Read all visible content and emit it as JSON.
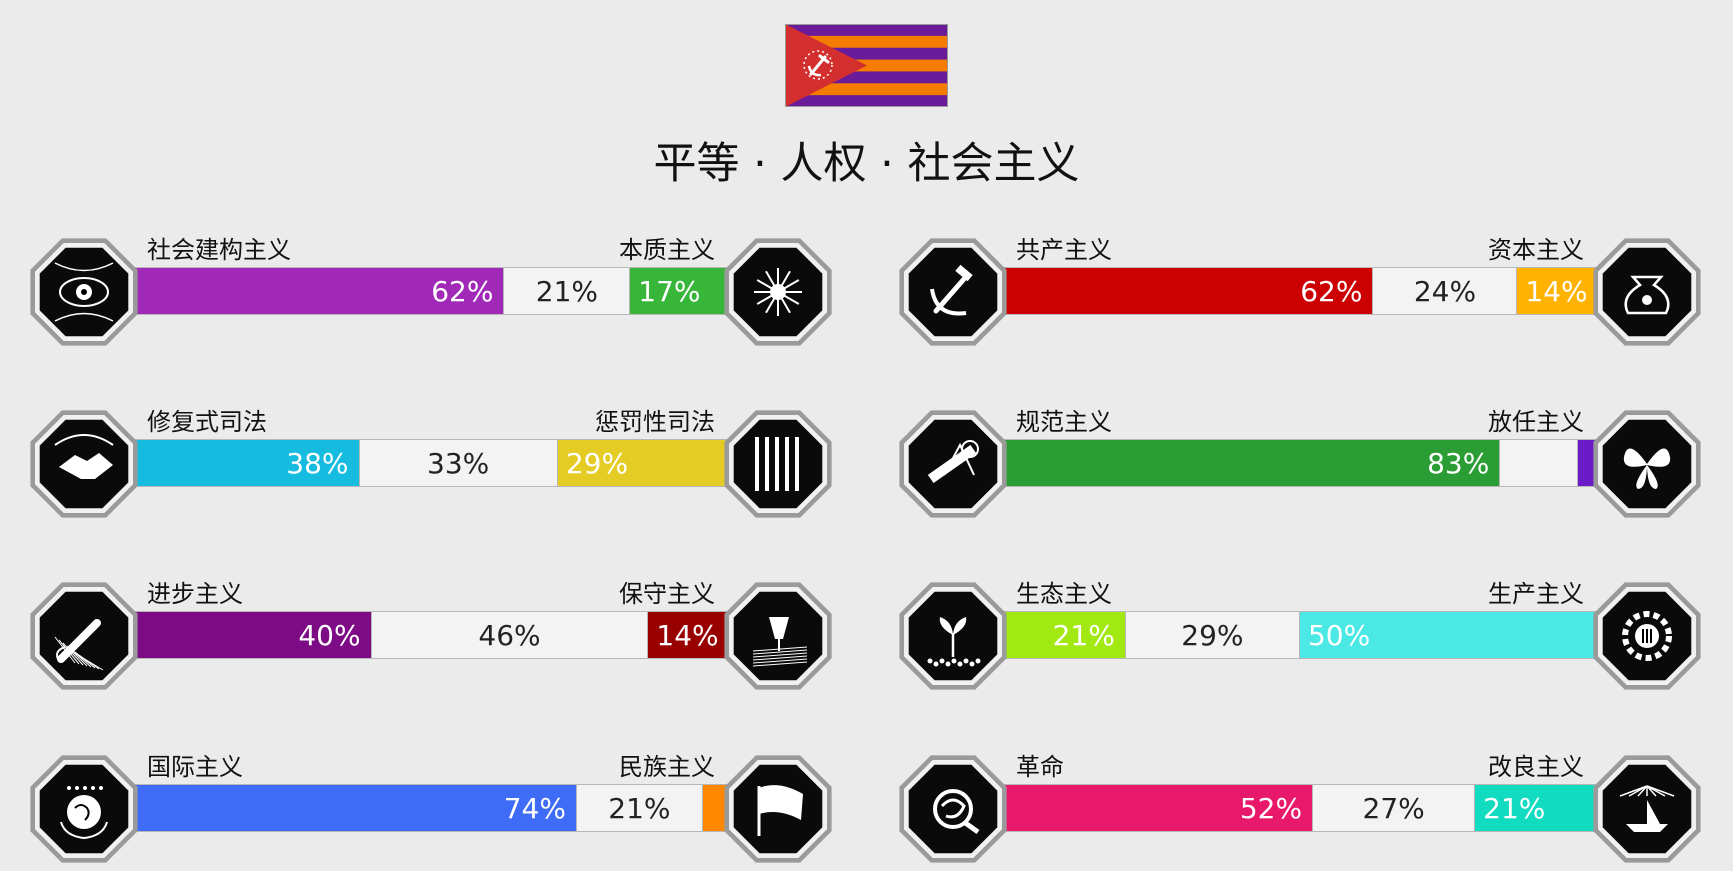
{
  "title": "平等 · 人权 · 社会主义",
  "flag_colors": {
    "stripe_purple": "#6a1b9a",
    "stripe_orange": "#f57c00",
    "triangle": "#d32f2f",
    "emblem": "#ffffff"
  },
  "axes": [
    {
      "left_label": "社会建构主义",
      "right_label": "本质主义",
      "left_pct": 62,
      "mid_pct": 21,
      "right_pct": 17,
      "left_text": "62%",
      "mid_text": "21%",
      "right_text": "17%",
      "left_color": "#a129b7",
      "right_color": "#38b63a",
      "left_icon": "eye-icon",
      "right_icon": "flower-icon"
    },
    {
      "left_label": "共产主义",
      "right_label": "资本主义",
      "left_pct": 62,
      "mid_pct": 24,
      "right_pct": 14,
      "left_text": "62%",
      "mid_text": "24%",
      "right_text": "14%",
      "left_color": "#cc0000",
      "right_color": "#ffb300",
      "left_icon": "hammer-sickle-icon",
      "right_icon": "money-bag-icon"
    },
    {
      "left_label": "修复式司法",
      "right_label": "惩罚性司法",
      "left_pct": 38,
      "mid_pct": 33,
      "right_pct": 29,
      "left_text": "38%",
      "mid_text": "33%",
      "right_text": "29%",
      "left_color": "#15bce0",
      "right_color": "#e5cc25",
      "left_icon": "handshake-icon",
      "right_icon": "prison-bars-icon"
    },
    {
      "left_label": "规范主义",
      "right_label": "放任主义",
      "left_pct": 83,
      "mid_pct": 13,
      "right_pct": 4,
      "left_text": "83%",
      "mid_text": "",
      "right_text": "",
      "left_color": "#2a9e34",
      "right_color": "#6b1bc8",
      "left_icon": "ruler-compass-icon",
      "right_icon": "butterfly-icon"
    },
    {
      "left_label": "进步主义",
      "right_label": "保守主义",
      "left_pct": 40,
      "mid_pct": 46,
      "right_pct": 14,
      "left_text": "40%",
      "mid_text": "46%",
      "right_text": "14%",
      "left_color": "#7e0b86",
      "right_color": "#990000",
      "left_icon": "rocket-icon",
      "right_icon": "fountain-pen-icon"
    },
    {
      "left_label": "生态主义",
      "right_label": "生产主义",
      "left_pct": 21,
      "mid_pct": 29,
      "right_pct": 50,
      "left_text": "21%",
      "mid_text": "29%",
      "right_text": "50%",
      "left_color": "#a2e812",
      "right_color": "#4be8e6",
      "left_icon": "sprout-icon",
      "right_icon": "gear-icon"
    },
    {
      "left_label": "国际主义",
      "right_label": "民族主义",
      "left_pct": 74,
      "mid_pct": 21,
      "right_pct": 5,
      "left_text": "74%",
      "mid_text": "21%",
      "right_text": "",
      "left_color": "#3f6cf6",
      "right_color": "#ff8800",
      "left_icon": "globe-icon",
      "right_icon": "flag-icon"
    },
    {
      "left_label": "革命",
      "right_label": "改良主义",
      "left_pct": 52,
      "mid_pct": 27,
      "right_pct": 21,
      "left_text": "52%",
      "mid_text": "27%",
      "right_text": "21%",
      "left_color": "#e8196b",
      "right_color": "#12dcc0",
      "left_icon": "rose-icon",
      "right_icon": "paper-boat-icon"
    }
  ]
}
